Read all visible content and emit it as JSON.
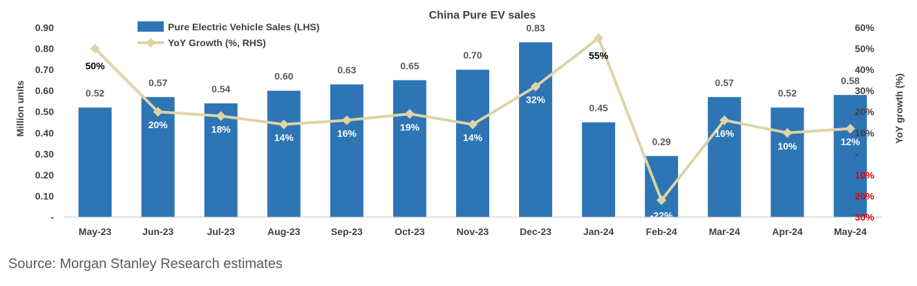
{
  "chart_data": {
    "type": "bar",
    "title": "China Pure EV sales",
    "categories": [
      "May-23",
      "Jun-23",
      "Jul-23",
      "Aug-23",
      "Sep-23",
      "Oct-23",
      "Nov-23",
      "Dec-23",
      "Jan-24",
      "Feb-24",
      "Mar-24",
      "Apr-24",
      "May-24"
    ],
    "series": [
      {
        "name": "Pure Electric Vehicle Sales (LHS)",
        "type": "bar",
        "axis": "left",
        "color": "#2e75b6",
        "values": [
          0.52,
          0.57,
          0.54,
          0.6,
          0.63,
          0.65,
          0.7,
          0.83,
          0.45,
          0.29,
          0.57,
          0.52,
          0.58
        ],
        "labels": [
          "0.52",
          "0.57",
          "0.54",
          "0.60",
          "0.63",
          "0.65",
          "0.70",
          "0.83",
          "0.45",
          "0.29",
          "0.57",
          "0.52",
          "0.58"
        ]
      },
      {
        "name": "YoY Growth (%, RHS)",
        "type": "line",
        "axis": "right",
        "color": "#ddd3a5",
        "values": [
          50,
          20,
          18,
          14,
          16,
          19,
          14,
          32,
          55,
          -22,
          16,
          10,
          12
        ],
        "labels": [
          "50%",
          "20%",
          "18%",
          "14%",
          "16%",
          "19%",
          "14%",
          "32%",
          "55%",
          "-22%",
          "16%",
          "10%",
          "12%"
        ]
      }
    ],
    "ylabel": "Million units",
    "y2label": "YoY growth (%)",
    "ylim": [
      0,
      0.9
    ],
    "y2lim": [
      -30,
      60
    ],
    "yticks": [
      "-",
      "0.10",
      "0.20",
      "0.30",
      "0.40",
      "0.50",
      "0.60",
      "0.70",
      "0.80",
      "0.90"
    ],
    "y2ticks": [
      "30%",
      "20%",
      "10%",
      "-",
      "10%",
      "20%",
      "30%",
      "40%",
      "50%",
      "60%"
    ],
    "legend_position": "top-left",
    "negative_tick_color": "#e00000"
  },
  "source": "Source: Morgan Stanley Research estimates"
}
